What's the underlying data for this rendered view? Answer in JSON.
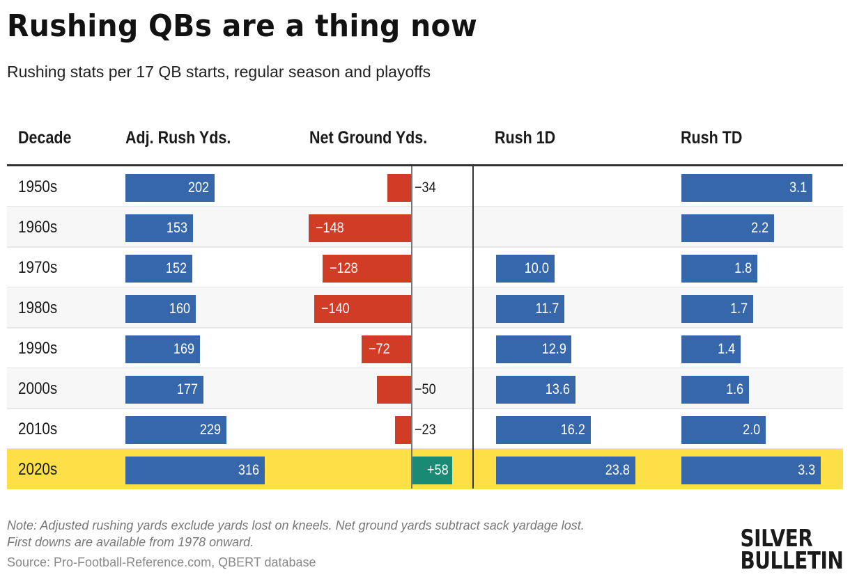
{
  "title": "Rushing QBs are a thing now",
  "subtitle": "Rushing stats per 17 QB starts, regular season and playoffs",
  "footer": {
    "note_line1": "Note: Adjusted rushing yards exclude yards lost on kneels. Net ground yards subtract sack yardage lost.",
    "note_line2": "First downs are available from 1978 onward.",
    "source": "Source: Pro-Football-Reference.com, QBERT database",
    "logo_line1": "SILVER",
    "logo_line2": "BULLETIN"
  },
  "colors": {
    "positive_bar": "#3667aa",
    "negative_bar": "#d13c26",
    "positive_net_bar": "#1a8a75",
    "highlight_row": "#fde047",
    "alt_row": "#f7f7f7"
  },
  "chart_data": {
    "type": "table",
    "title": "Rushing QBs are a thing now",
    "subtitle": "Rushing stats per 17 QB starts, regular season and playoffs",
    "columns": [
      "Decade",
      "Adj. Rush Yds.",
      "Net Ground Yds.",
      "Rush 1D",
      "Rush TD"
    ],
    "categories": [
      "1950s",
      "1960s",
      "1970s",
      "1980s",
      "1990s",
      "2000s",
      "2010s",
      "2020s"
    ],
    "highlight": "2020s",
    "series": [
      {
        "name": "Adj. Rush Yds.",
        "values": [
          202,
          153,
          152,
          160,
          169,
          177,
          229,
          316
        ],
        "labels": [
          "202",
          "153",
          "152",
          "160",
          "169",
          "177",
          "229",
          "316"
        ]
      },
      {
        "name": "Net Ground Yds.",
        "values": [
          -34,
          -148,
          -128,
          -140,
          -72,
          -50,
          -23,
          58
        ],
        "labels": [
          "−34",
          "−148",
          "−128",
          "−140",
          "−72",
          "−50",
          "−23",
          "+58"
        ]
      },
      {
        "name": "Rush 1D",
        "values": [
          null,
          null,
          10.0,
          11.7,
          12.9,
          13.6,
          16.2,
          23.8
        ],
        "labels": [
          "",
          "",
          "10.0",
          "11.7",
          "12.9",
          "13.6",
          "16.2",
          "23.8"
        ]
      },
      {
        "name": "Rush TD",
        "values": [
          3.1,
          2.2,
          1.8,
          1.7,
          1.4,
          1.6,
          2.0,
          3.3
        ],
        "labels": [
          "3.1",
          "2.2",
          "1.8",
          "1.7",
          "1.4",
          "1.6",
          "2.0",
          "3.3"
        ]
      }
    ]
  }
}
